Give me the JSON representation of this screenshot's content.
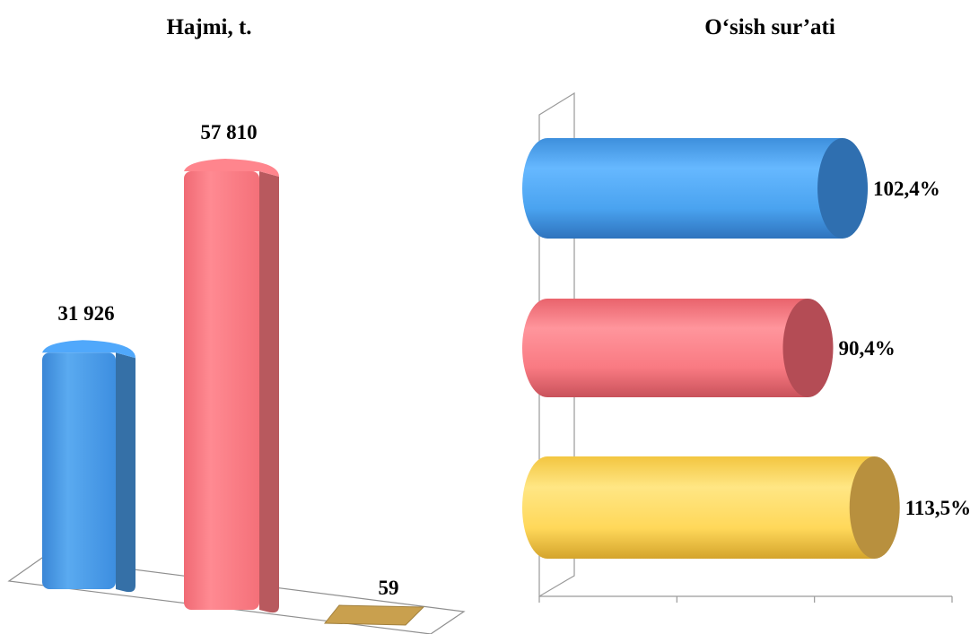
{
  "chart_data": [
    {
      "type": "bar",
      "title": "Hajmi, t.",
      "categories": [
        "",
        "",
        ""
      ],
      "values": [
        31926,
        57810,
        59
      ],
      "value_labels": [
        "31 926",
        "57 810",
        "59"
      ],
      "colors": [
        "#4a9ce8",
        "#ff7b83",
        "#c9a04e"
      ],
      "ylim": [
        0,
        60000
      ],
      "grid": false,
      "legend": "none"
    },
    {
      "type": "bar",
      "orientation": "horizontal",
      "title": "O‘sish sur’ati",
      "categories": [
        "",
        "",
        ""
      ],
      "values": [
        102.4,
        90.4,
        113.5
      ],
      "value_labels": [
        "102,4%",
        "90,4%",
        "113,5%"
      ],
      "colors": [
        "#4aa9f2",
        "#ff7b83",
        "#ffd85a"
      ],
      "xlim": [
        0,
        120
      ],
      "grid": false,
      "legend": "none"
    }
  ]
}
